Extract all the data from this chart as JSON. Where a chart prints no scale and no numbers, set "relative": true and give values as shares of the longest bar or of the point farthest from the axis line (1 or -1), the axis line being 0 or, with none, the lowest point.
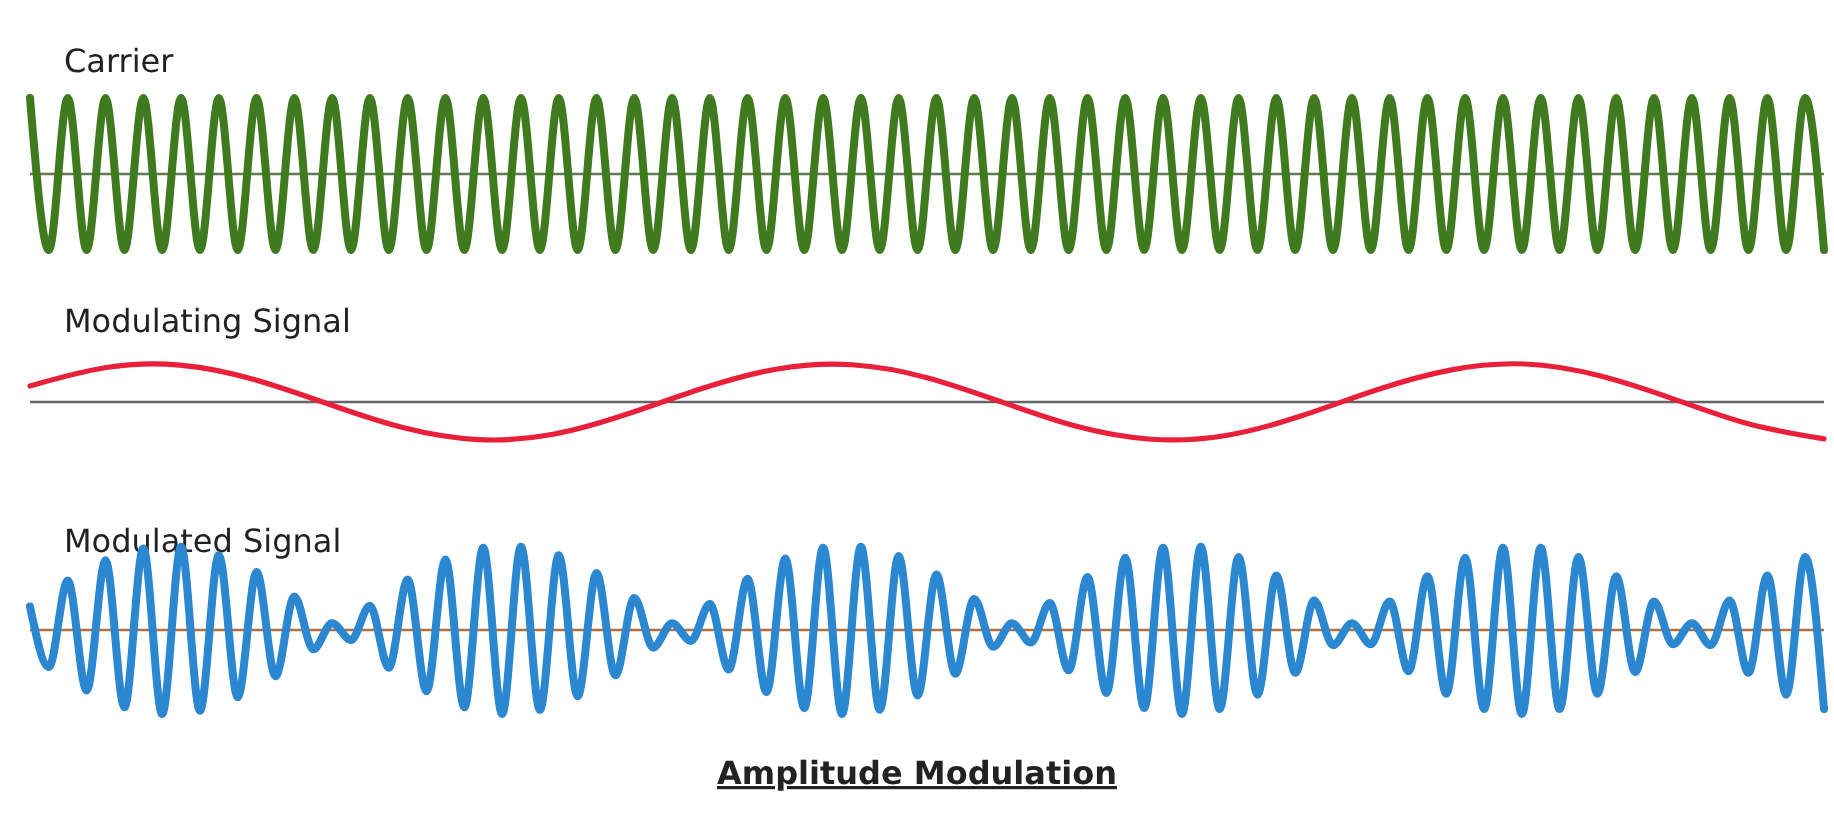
{
  "chart_data": [
    {
      "type": "line",
      "title": "Carrier",
      "relative": true,
      "ref_lines": [
        {
          "axis": "y",
          "value": 0,
          "color": "#5f7a55"
        }
      ],
      "categories": [
        null,
        null,
        null,
        null,
        null,
        null,
        null,
        null,
        null,
        null,
        null,
        null,
        null,
        null,
        null,
        null,
        null,
        null,
        null,
        null,
        null,
        null,
        null,
        null,
        null,
        null,
        null,
        null,
        null,
        null,
        null,
        null,
        null,
        null,
        null,
        null,
        null,
        null,
        null,
        null,
        null,
        null,
        null,
        null,
        null,
        null,
        null,
        null,
        null,
        null,
        null,
        null,
        null,
        null,
        null,
        null,
        null,
        null,
        null,
        null,
        null,
        null,
        null,
        null,
        null,
        null,
        null,
        null,
        null,
        null,
        null,
        null,
        null,
        null,
        null,
        null,
        null,
        null,
        null,
        null,
        null,
        null,
        null,
        null,
        null,
        null,
        null,
        null,
        null,
        null,
        null,
        null,
        null,
        null,
        null,
        null
      ],
      "series": [
        {
          "color": "#3f7a1f",
          "values": [
            1,
            -1,
            1,
            -1,
            1,
            -1,
            1,
            -1,
            1,
            -1,
            1,
            -1,
            1,
            -1,
            1,
            -1,
            1,
            -1,
            1,
            -1,
            1,
            -1,
            1,
            -1,
            1,
            -1,
            1,
            -1,
            1,
            -1,
            1,
            -1,
            1,
            -1,
            1,
            -1,
            1,
            -1,
            1,
            -1,
            1,
            -1,
            1,
            -1,
            1,
            -1,
            1,
            -1,
            1,
            -1,
            1,
            -1,
            1,
            -1,
            1,
            -1,
            1,
            -1,
            1,
            -1,
            1,
            -1,
            1,
            -1,
            1,
            -1,
            1,
            -1,
            1,
            -1,
            1,
            -1,
            1,
            -1,
            1,
            -1,
            1,
            -1,
            1,
            -1,
            1,
            -1,
            1,
            -1,
            1,
            -1,
            1,
            -1,
            1,
            -1,
            1,
            -1,
            1,
            -1,
            1,
            -1
          ]
        }
      ]
    },
    {
      "type": "line",
      "title": "Modulating Signal",
      "relative": true,
      "ref_lines": [
        {
          "axis": "y",
          "value": 0,
          "color": "#666666"
        }
      ],
      "categories": [
        null,
        null,
        null,
        null,
        null,
        null,
        null,
        null,
        null,
        null,
        null,
        null,
        null,
        null,
        null,
        null,
        null,
        null,
        null,
        null,
        null,
        null,
        null,
        null,
        null
      ],
      "series": [
        {
          "color": "#e8203a",
          "values": [
            0.42,
            0.9,
            0.97,
            0.59,
            -0.06,
            -0.68,
            -0.99,
            -0.85,
            -0.31,
            0.36,
            0.87,
            0.98,
            0.64,
            0,
            -0.64,
            -0.98,
            -0.88,
            -0.37,
            0.31,
            0.84,
            1,
            0.69,
            0.07,
            -0.58,
            -0.97
          ]
        }
      ]
    },
    {
      "type": "line",
      "title": "Modulated Signal",
      "relative": true,
      "ref_lines": [
        {
          "axis": "y",
          "value": 0,
          "color": "#b07040"
        }
      ],
      "annotations": [
        "Amplitude Modulation"
      ],
      "categories": [
        null,
        null,
        null,
        null,
        null,
        null,
        null,
        null,
        null,
        null,
        null,
        null,
        null,
        null,
        null,
        null,
        null,
        null,
        null,
        null,
        null,
        null,
        null,
        null,
        null,
        null,
        null,
        null,
        null,
        null,
        null,
        null,
        null,
        null,
        null,
        null,
        null,
        null,
        null,
        null,
        null,
        null,
        null,
        null,
        null,
        null,
        null,
        null,
        null,
        null,
        null,
        null,
        null,
        null,
        null,
        null,
        null,
        null,
        null,
        null,
        null,
        null,
        null,
        null,
        null,
        null,
        null,
        null,
        null,
        null,
        null,
        null,
        null,
        null,
        null,
        null,
        null,
        null,
        null,
        null,
        null,
        null,
        null,
        null,
        null,
        null,
        null,
        null,
        null,
        null,
        null,
        null,
        null,
        null,
        null,
        null
      ],
      "series": [
        {
          "color": "#2b87d0",
          "values": [
            0.28,
            -0.44,
            0.59,
            -0.72,
            0.83,
            -0.92,
            0.97,
            -1,
            0.99,
            -0.96,
            0.89,
            -0.8,
            0.69,
            -0.55,
            0.4,
            -0.23,
            0.08,
            -0.12,
            0.29,
            -0.45,
            0.6,
            -0.73,
            0.84,
            -0.92,
            0.98,
            -1,
            0.99,
            -0.95,
            0.89,
            -0.79,
            0.68,
            -0.54,
            0.38,
            -0.21,
            0.08,
            -0.13,
            0.31,
            -0.47,
            0.61,
            -0.74,
            0.85,
            -0.93,
            0.98,
            -1,
            0.99,
            -0.95,
            0.88,
            -0.78,
            0.66,
            -0.52,
            0.37,
            -0.2,
            0.08,
            -0.15,
            0.32,
            -0.48,
            0.63,
            -0.75,
            0.86,
            -0.93,
            0.98,
            -1,
            0.99,
            -0.94,
            0.87,
            -0.77,
            0.65,
            -0.51,
            0.35,
            -0.18,
            0.08,
            -0.17,
            0.34,
            -0.49,
            0.64,
            -0.76,
            0.86,
            -0.94,
            0.98,
            -1,
            0.98,
            -0.94,
            0.87,
            -0.76,
            0.64,
            -0.5,
            0.34,
            -0.17,
            0.08,
            -0.18,
            0.35,
            -0.51,
            0.65,
            -0.77,
            0.87,
            -0.94
          ]
        }
      ]
    }
  ]
}
